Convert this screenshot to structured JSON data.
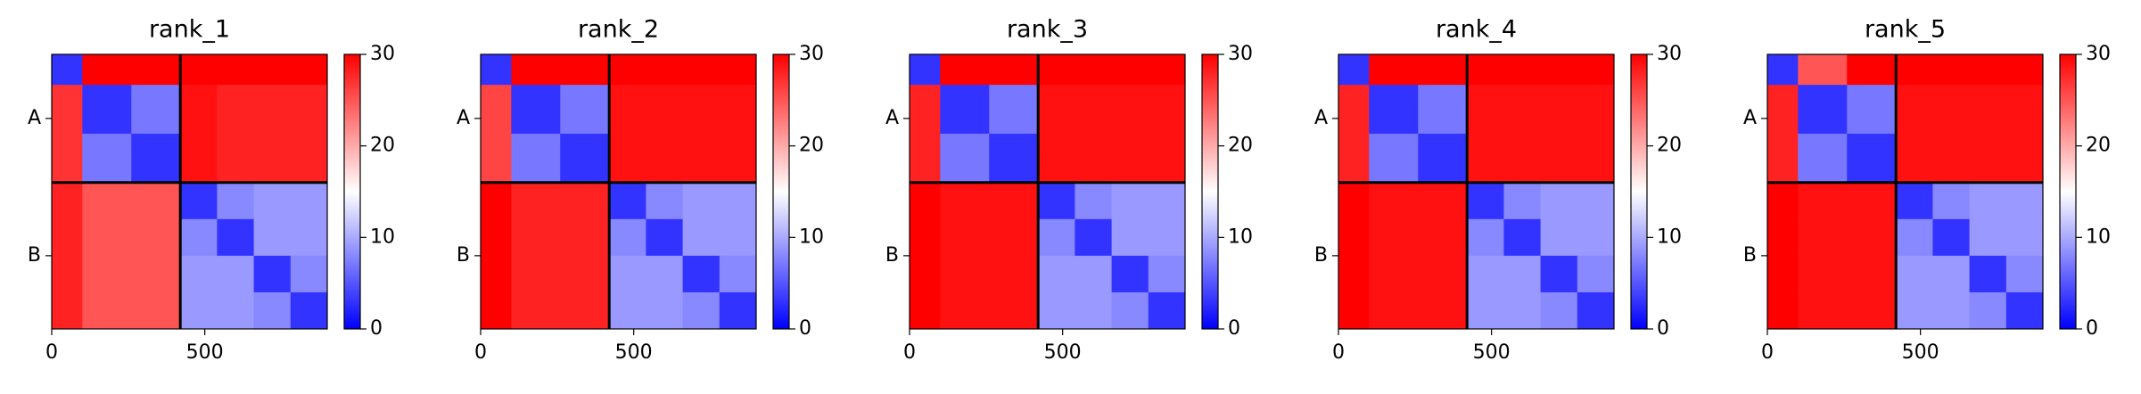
{
  "chart_data": [
    {
      "type": "heatmap",
      "title": "rank_1",
      "bins": [
        0,
        100,
        260,
        420,
        540,
        660,
        780,
        900
      ],
      "matrix": [
        [
          3,
          30,
          30,
          30,
          30,
          30,
          30
        ],
        [
          27,
          3,
          7,
          29,
          28,
          28,
          28
        ],
        [
          27,
          7,
          3,
          29,
          28,
          28,
          28
        ],
        [
          28,
          25,
          25,
          3,
          8,
          9,
          9
        ],
        [
          28,
          25,
          25,
          8,
          3,
          9,
          9
        ],
        [
          28,
          25,
          25,
          9,
          9,
          3,
          8
        ],
        [
          28,
          25,
          25,
          9,
          9,
          8,
          3
        ]
      ],
      "xlim": [
        0,
        900
      ],
      "xticks": [
        0,
        500
      ],
      "ylim": [
        900,
        0
      ],
      "yticks": [
        {
          "value": 210,
          "label": "A"
        },
        {
          "value": 660,
          "label": "B"
        }
      ],
      "chain_breaks": [
        420
      ],
      "clim": [
        0,
        30
      ],
      "cticks": [
        0,
        10,
        20,
        30
      ],
      "colormap": [
        "#0000ff",
        "#ffffff",
        "#ff0000"
      ]
    },
    {
      "type": "heatmap",
      "title": "rank_2",
      "bins": [
        0,
        100,
        260,
        420,
        540,
        660,
        780,
        900
      ],
      "matrix": [
        [
          3,
          30,
          30,
          30,
          30,
          30,
          30
        ],
        [
          26,
          3,
          7,
          29,
          29,
          29,
          29
        ],
        [
          26,
          7,
          3,
          29,
          29,
          29,
          29
        ],
        [
          30,
          28,
          28,
          3,
          8,
          9,
          9
        ],
        [
          30,
          28,
          28,
          8,
          3,
          9,
          9
        ],
        [
          30,
          28,
          28,
          9,
          9,
          3,
          8
        ],
        [
          30,
          28,
          28,
          9,
          9,
          8,
          3
        ]
      ],
      "xlim": [
        0,
        900
      ],
      "xticks": [
        0,
        500
      ],
      "ylim": [
        900,
        0
      ],
      "yticks": [
        {
          "value": 210,
          "label": "A"
        },
        {
          "value": 660,
          "label": "B"
        }
      ],
      "chain_breaks": [
        420
      ],
      "clim": [
        0,
        30
      ],
      "cticks": [
        0,
        10,
        20,
        30
      ],
      "colormap": [
        "#0000ff",
        "#ffffff",
        "#ff0000"
      ]
    },
    {
      "type": "heatmap",
      "title": "rank_3",
      "bins": [
        0,
        100,
        260,
        420,
        540,
        660,
        780,
        900
      ],
      "matrix": [
        [
          3,
          30,
          30,
          30,
          30,
          30,
          30
        ],
        [
          28,
          3,
          7,
          29,
          29,
          29,
          29
        ],
        [
          28,
          7,
          3,
          29,
          29,
          29,
          29
        ],
        [
          30,
          29,
          29,
          3,
          8,
          9,
          9
        ],
        [
          30,
          29,
          29,
          8,
          3,
          9,
          9
        ],
        [
          30,
          29,
          29,
          9,
          9,
          3,
          8
        ],
        [
          30,
          29,
          29,
          9,
          9,
          8,
          3
        ]
      ],
      "xlim": [
        0,
        900
      ],
      "xticks": [
        0,
        500
      ],
      "ylim": [
        900,
        0
      ],
      "yticks": [
        {
          "value": 210,
          "label": "A"
        },
        {
          "value": 660,
          "label": "B"
        }
      ],
      "chain_breaks": [
        420
      ],
      "clim": [
        0,
        30
      ],
      "cticks": [
        0,
        10,
        20,
        30
      ],
      "colormap": [
        "#0000ff",
        "#ffffff",
        "#ff0000"
      ]
    },
    {
      "type": "heatmap",
      "title": "rank_4",
      "bins": [
        0,
        100,
        260,
        420,
        540,
        660,
        780,
        900
      ],
      "matrix": [
        [
          3,
          30,
          30,
          30,
          30,
          30,
          30
        ],
        [
          28,
          3,
          7,
          29,
          29,
          29,
          29
        ],
        [
          28,
          7,
          3,
          29,
          29,
          29,
          29
        ],
        [
          30,
          29,
          29,
          3,
          8,
          9,
          9
        ],
        [
          30,
          29,
          29,
          8,
          3,
          9,
          9
        ],
        [
          30,
          29,
          29,
          9,
          9,
          3,
          8
        ],
        [
          30,
          29,
          29,
          9,
          9,
          8,
          3
        ]
      ],
      "xlim": [
        0,
        900
      ],
      "xticks": [
        0,
        500
      ],
      "ylim": [
        900,
        0
      ],
      "yticks": [
        {
          "value": 210,
          "label": "A"
        },
        {
          "value": 660,
          "label": "B"
        }
      ],
      "chain_breaks": [
        420
      ],
      "clim": [
        0,
        30
      ],
      "cticks": [
        0,
        10,
        20,
        30
      ],
      "colormap": [
        "#0000ff",
        "#ffffff",
        "#ff0000"
      ]
    },
    {
      "type": "heatmap",
      "title": "rank_5",
      "bins": [
        0,
        100,
        260,
        420,
        540,
        660,
        780,
        900
      ],
      "matrix": [
        [
          3,
          25,
          30,
          30,
          30,
          30,
          30
        ],
        [
          28,
          3,
          7,
          29,
          29,
          29,
          29
        ],
        [
          28,
          7,
          3,
          29,
          29,
          29,
          29
        ],
        [
          30,
          29,
          29,
          3,
          8,
          9,
          9
        ],
        [
          30,
          29,
          29,
          8,
          3,
          9,
          9
        ],
        [
          30,
          29,
          29,
          9,
          9,
          3,
          8
        ],
        [
          30,
          29,
          29,
          9,
          9,
          8,
          3
        ]
      ],
      "xlim": [
        0,
        900
      ],
      "xticks": [
        0,
        500
      ],
      "ylim": [
        900,
        0
      ],
      "yticks": [
        {
          "value": 210,
          "label": "A"
        },
        {
          "value": 660,
          "label": "B"
        }
      ],
      "chain_breaks": [
        420
      ],
      "clim": [
        0,
        30
      ],
      "cticks": [
        0,
        10,
        20,
        30
      ],
      "colormap": [
        "#0000ff",
        "#ffffff",
        "#ff0000"
      ]
    }
  ]
}
